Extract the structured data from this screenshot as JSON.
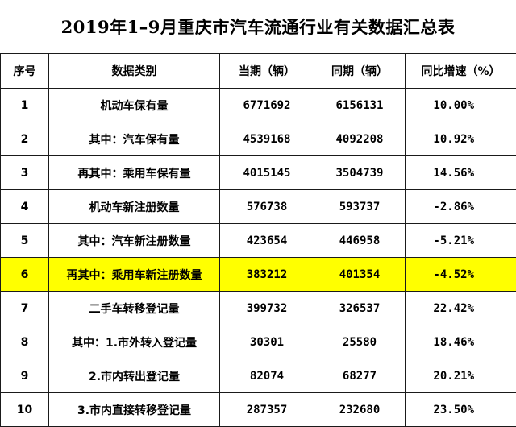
{
  "title": "2019年1–9月重庆市汽车流通行业有关数据汇总表",
  "table": {
    "headers": [
      "序号",
      "数据类别",
      "当期（辆）",
      "同期（辆）",
      "同比增速（%）"
    ],
    "rows": [
      {
        "idx": "1",
        "category": "机动车保有量",
        "current": "6771692",
        "previous": "6156131",
        "growth": "10.00%"
      },
      {
        "idx": "2",
        "category": "其中：汽车保有量",
        "current": "4539168",
        "previous": "4092208",
        "growth": "10.92%"
      },
      {
        "idx": "3",
        "category": "再其中：乘用车保有量",
        "current": "4015145",
        "previous": "3504739",
        "growth": "14.56%"
      },
      {
        "idx": "4",
        "category": "机动车新注册数量",
        "current": "576738",
        "previous": "593737",
        "growth": "-2.86%"
      },
      {
        "idx": "5",
        "category": "其中：汽车新注册数量",
        "current": "423654",
        "previous": "446958",
        "growth": "-5.21%"
      },
      {
        "idx": "6",
        "category": "再其中：乘用车新注册数量",
        "current": "383212",
        "previous": "401354",
        "growth": "-4.52%",
        "highlight": true
      },
      {
        "idx": "7",
        "category": "二手车转移登记量",
        "current": "399732",
        "previous": "326537",
        "growth": "22.42%"
      },
      {
        "idx": "8",
        "category": "其中：1.市外转入登记量",
        "current": "30301",
        "previous": "25580",
        "growth": "18.46%"
      },
      {
        "idx": "9",
        "category": "2.市内转出登记量",
        "current": "82074",
        "previous": "68277",
        "growth": "20.21%"
      },
      {
        "idx": "10",
        "category": "3.市内直接转移登记量",
        "current": "287357",
        "previous": "232680",
        "growth": "23.50%"
      }
    ]
  },
  "colors": {
    "highlight_row": "#ffff00",
    "border": "#1a1a1a"
  }
}
